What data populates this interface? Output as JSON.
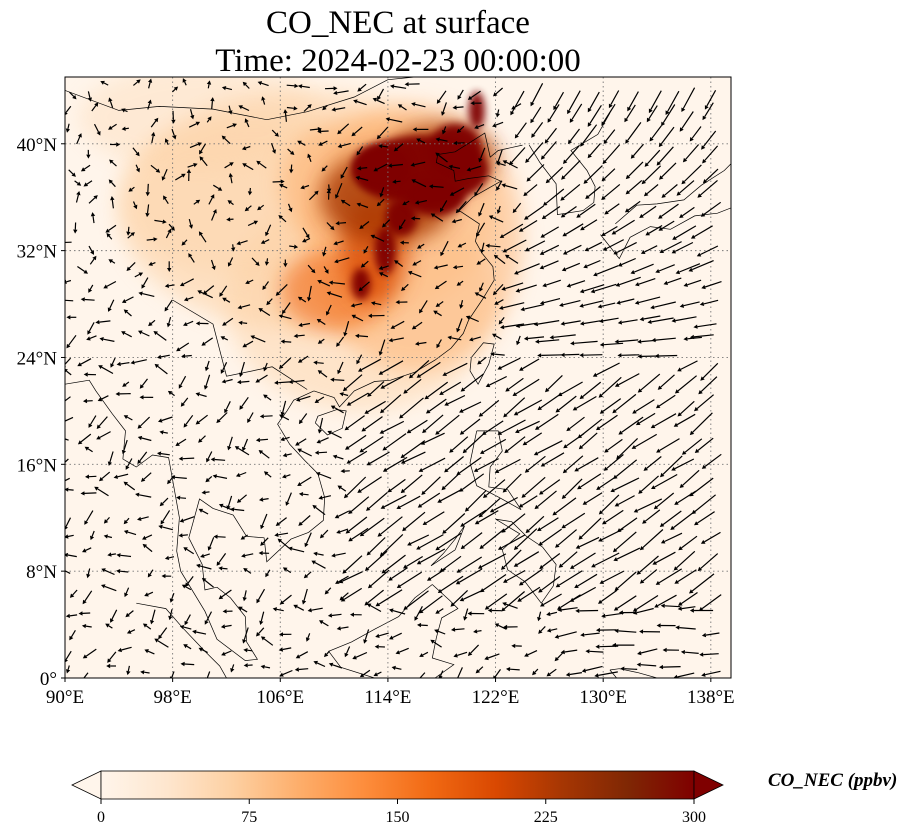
{
  "title": {
    "line1": "CO_NEC at surface",
    "line2": "Time: 2024-02-23 00:00:00"
  },
  "map": {
    "variable": "CO_NEC",
    "level": "surface",
    "projection": "PlateCarree",
    "lon_range": [
      90,
      139.5
    ],
    "lat_range": [
      0,
      45
    ],
    "lon_ticks": [
      "90°E",
      "98°E",
      "106°E",
      "114°E",
      "122°E",
      "130°E",
      "138°E"
    ],
    "lon_tick_values": [
      90,
      98,
      106,
      114,
      122,
      130,
      138
    ],
    "lat_ticks": [
      "0°",
      "8°N",
      "16°N",
      "24°N",
      "32°N",
      "40°N"
    ],
    "lat_tick_values": [
      0,
      8,
      16,
      24,
      32,
      40
    ],
    "gridlines": "dotted",
    "background_color": "#fff5eb",
    "overlay": "wind vectors (black arrows)",
    "plume_colors": [
      "#fdd0a2",
      "#fdae6b",
      "#f16913",
      "#d94801",
      "#a63603",
      "#7f0000"
    ]
  },
  "colorbar": {
    "label": "CO_NEC (ppbv)",
    "ticks": [
      "0",
      "75",
      "150",
      "225",
      "300"
    ],
    "tick_values": [
      0,
      75,
      150,
      225,
      300
    ],
    "range": [
      0,
      300
    ],
    "extend": "both",
    "colormap": [
      "#fff5eb",
      "#fee6ce",
      "#fdd0a2",
      "#fdae6b",
      "#fd8d3c",
      "#f16913",
      "#d94801",
      "#a63603",
      "#7f2704",
      "#7f0000"
    ]
  }
}
